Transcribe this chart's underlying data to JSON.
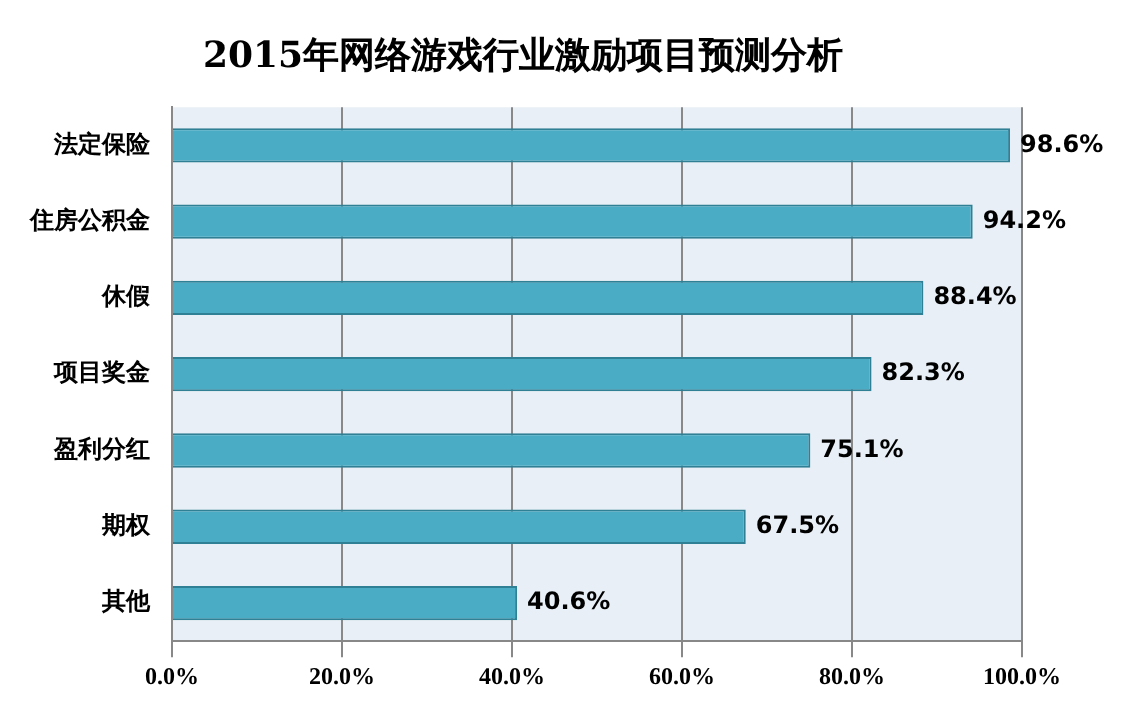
{
  "chart_data": {
    "type": "bar",
    "orientation": "horizontal",
    "title": "2015年网络游戏行业激励项目预测分析",
    "categories": [
      "法定保险",
      "住房公积金",
      "休假",
      "项目奖金",
      "盈利分红",
      "期权",
      "其他"
    ],
    "values": [
      98.6,
      94.2,
      88.4,
      82.3,
      75.1,
      67.5,
      40.6
    ],
    "value_labels": [
      "98.6%",
      "94.2%",
      "88.4%",
      "82.3%",
      "75.1%",
      "67.5%",
      "40.6%"
    ],
    "color": "#4bacc6",
    "xlim": [
      0,
      100
    ],
    "xticks": [
      {
        "value": 0,
        "label": "0.0%"
      },
      {
        "value": 20,
        "label": "20.0%"
      },
      {
        "value": 40,
        "label": "40.0%"
      },
      {
        "value": 60,
        "label": "60.0%"
      },
      {
        "value": 80,
        "label": "80.0%"
      },
      {
        "value": 100,
        "label": "100.0%"
      }
    ],
    "grid": "x",
    "legend": false
  }
}
